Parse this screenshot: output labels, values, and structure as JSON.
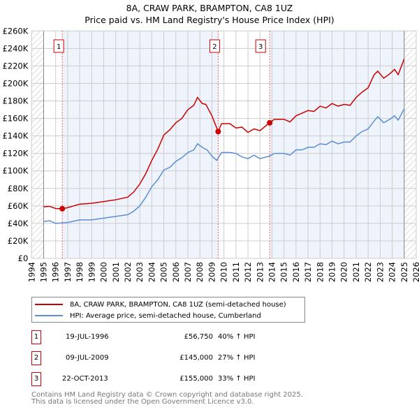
{
  "chart_data": {
    "type": "line",
    "title": "8A, CRAW PARK, BRAMPTON, CA8 1UZ",
    "subtitle": "Price paid vs. HM Land Registry's House Price Index (HPI)",
    "xlim": [
      1994,
      2026
    ],
    "ylim": [
      0,
      260000
    ],
    "x_ticks": [
      "1994",
      "1995",
      "1996",
      "1997",
      "1998",
      "1999",
      "2000",
      "2001",
      "2002",
      "2003",
      "2004",
      "2005",
      "2006",
      "2007",
      "2008",
      "2009",
      "2010",
      "2011",
      "2012",
      "2013",
      "2014",
      "2015",
      "2016",
      "2017",
      "2018",
      "2019",
      "2020",
      "2021",
      "2022",
      "2023",
      "2024",
      "2025",
      "2026"
    ],
    "y_ticks": [
      "£0",
      "£20K",
      "£40K",
      "£60K",
      "£80K",
      "£100K",
      "£120K",
      "£140K",
      "£160K",
      "£180K",
      "£200K",
      "£220K",
      "£240K",
      "£260K"
    ],
    "grid": true,
    "series": [
      {
        "name": "8A, CRAW PARK, BRAMPTON, CA8 1UZ (semi-detached house)",
        "color": "#cc0000",
        "x": [
          1995,
          1995.5,
          1996,
          1996.55,
          1997,
          1998,
          1999,
          2000,
          2001,
          2002,
          2002.5,
          2003,
          2003.5,
          2004,
          2004.5,
          2005,
          2005.5,
          2006,
          2006.5,
          2007,
          2007.5,
          2007.8,
          2008.2,
          2008.5,
          2009,
          2009.52,
          2009.8,
          2010.5,
          2011,
          2011.5,
          2012,
          2012.5,
          2013,
          2013.8,
          2014.2,
          2015,
          2015.5,
          2016,
          2016.5,
          2017,
          2017.5,
          2018,
          2018.5,
          2019,
          2019.5,
          2020,
          2020.5,
          2021,
          2021.5,
          2022,
          2022.5,
          2022.8,
          2023.3,
          2023.8,
          2024.2,
          2024.5,
          2025
        ],
        "y": [
          59000,
          59500,
          57000,
          56750,
          58000,
          62000,
          63000,
          65000,
          67000,
          70000,
          76000,
          85000,
          97000,
          112000,
          125000,
          141000,
          147000,
          155000,
          160000,
          170000,
          175000,
          184000,
          177000,
          176000,
          163000,
          145000,
          154000,
          154000,
          149000,
          150000,
          144000,
          148000,
          146000,
          155000,
          159000,
          159000,
          156000,
          163000,
          166000,
          169000,
          168000,
          174000,
          172000,
          177000,
          174000,
          176000,
          175000,
          184000,
          190000,
          195000,
          210000,
          214000,
          206000,
          211000,
          216000,
          210000,
          228000
        ]
      },
      {
        "name": "HPI: Average price, semi-detached house, Cumberland",
        "color": "#5b8fd4",
        "x": [
          1995,
          1995.5,
          1996,
          1997,
          1998,
          1999,
          2000,
          2001,
          2002,
          2002.5,
          2003,
          2003.5,
          2004,
          2004.5,
          2005,
          2005.5,
          2006,
          2006.5,
          2007,
          2007.5,
          2007.8,
          2008.3,
          2008.6,
          2009,
          2009.4,
          2009.8,
          2010.5,
          2011,
          2011.5,
          2012,
          2012.5,
          2013,
          2013.8,
          2014.2,
          2015,
          2015.5,
          2016,
          2016.5,
          2017,
          2017.5,
          2018,
          2018.5,
          2019,
          2019.5,
          2020,
          2020.5,
          2021,
          2021.5,
          2022,
          2022.5,
          2022.8,
          2023.3,
          2023.8,
          2024.2,
          2024.5,
          2025
        ],
        "y": [
          42000,
          43000,
          40000,
          41000,
          44000,
          44000,
          46000,
          48000,
          50000,
          54000,
          60000,
          70000,
          82000,
          90000,
          101000,
          104000,
          111000,
          115000,
          121000,
          124000,
          131000,
          126000,
          124000,
          117000,
          112000,
          121000,
          121000,
          120000,
          116000,
          114000,
          118000,
          114000,
          117000,
          120000,
          120000,
          118000,
          124000,
          124000,
          127000,
          127000,
          131000,
          130000,
          134000,
          131000,
          133000,
          133000,
          140000,
          145000,
          148000,
          157000,
          162000,
          155000,
          159000,
          163000,
          158000,
          171000
        ]
      }
    ],
    "sales": [
      {
        "label": "1",
        "x": 1996.55,
        "price": 56750,
        "date": "19-JUL-1996",
        "price_text": "£56,750",
        "hpi": "40% ↑ HPI"
      },
      {
        "label": "2",
        "x": 2009.52,
        "price": 145000,
        "date": "09-JUL-2009",
        "price_text": "£145,000",
        "hpi": "27% ↑ HPI"
      },
      {
        "label": "3",
        "x": 2013.81,
        "price": 155000,
        "date": "22-OCT-2013",
        "price_text": "£155,000",
        "hpi": "33% ↑ HPI"
      }
    ],
    "data_start": 1995,
    "data_end": 2025
  },
  "footer": {
    "line1": "Contains HM Land Registry data © Crown copyright and database right 2025.",
    "line2": "This data is licensed under the Open Government Licence v3.0."
  }
}
